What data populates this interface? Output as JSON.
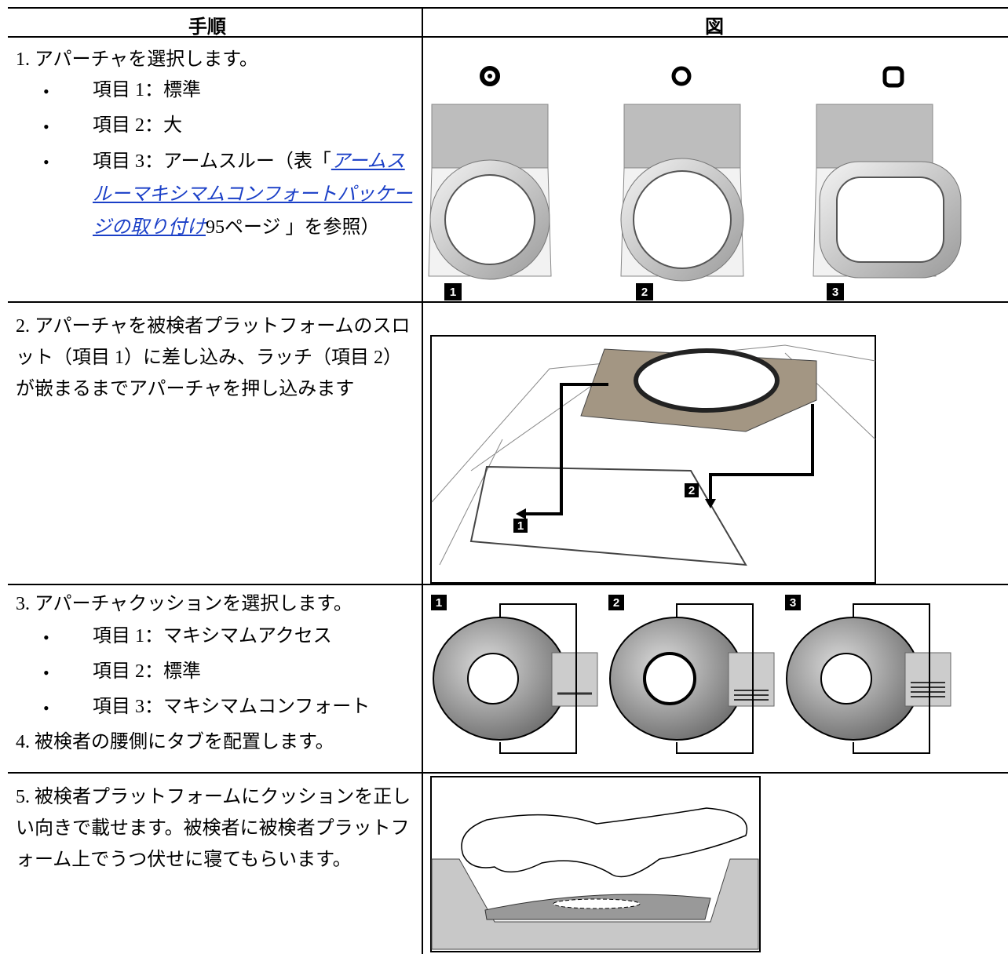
{
  "table": {
    "header": [
      "手順",
      "図"
    ],
    "rows": [
      {
        "step": "1. アパーチャを選択します。",
        "bullets": [
          "項目 1：標準",
          "項目 2：大"
        ],
        "link_bullet": {
          "before": "項目 3：アームスルー（表「",
          "link": "アームスルーマキシマムコンフォートパッケージの取り付け",
          "after": "95ページ 」を参照）"
        },
        "figure_labels": [
          "1",
          "2",
          "3"
        ]
      },
      {
        "step": "2. アパーチャを被検者プラットフォームのスロット（項目 1）に差し込み、ラッチ（項目 2）が嵌まるまでアパーチャを押し込みます",
        "figure_labels": [
          "1",
          "2"
        ]
      },
      {
        "step": "3. アパーチャクッションを選択します。",
        "bullets": [
          "項目 1：マキシマムアクセス",
          "項目 2：標準",
          "項目 3：マキシマムコンフォート"
        ],
        "step2": "4. 被検者の腰側にタブを配置します。",
        "figure_labels": [
          "1",
          "2",
          "3"
        ]
      },
      {
        "step": "5. 被検者プラットフォームにクッションを正しい向きで載せます。被検者に被検者プラットフォーム上でうつ伏せに寝てもらいます。"
      }
    ]
  }
}
